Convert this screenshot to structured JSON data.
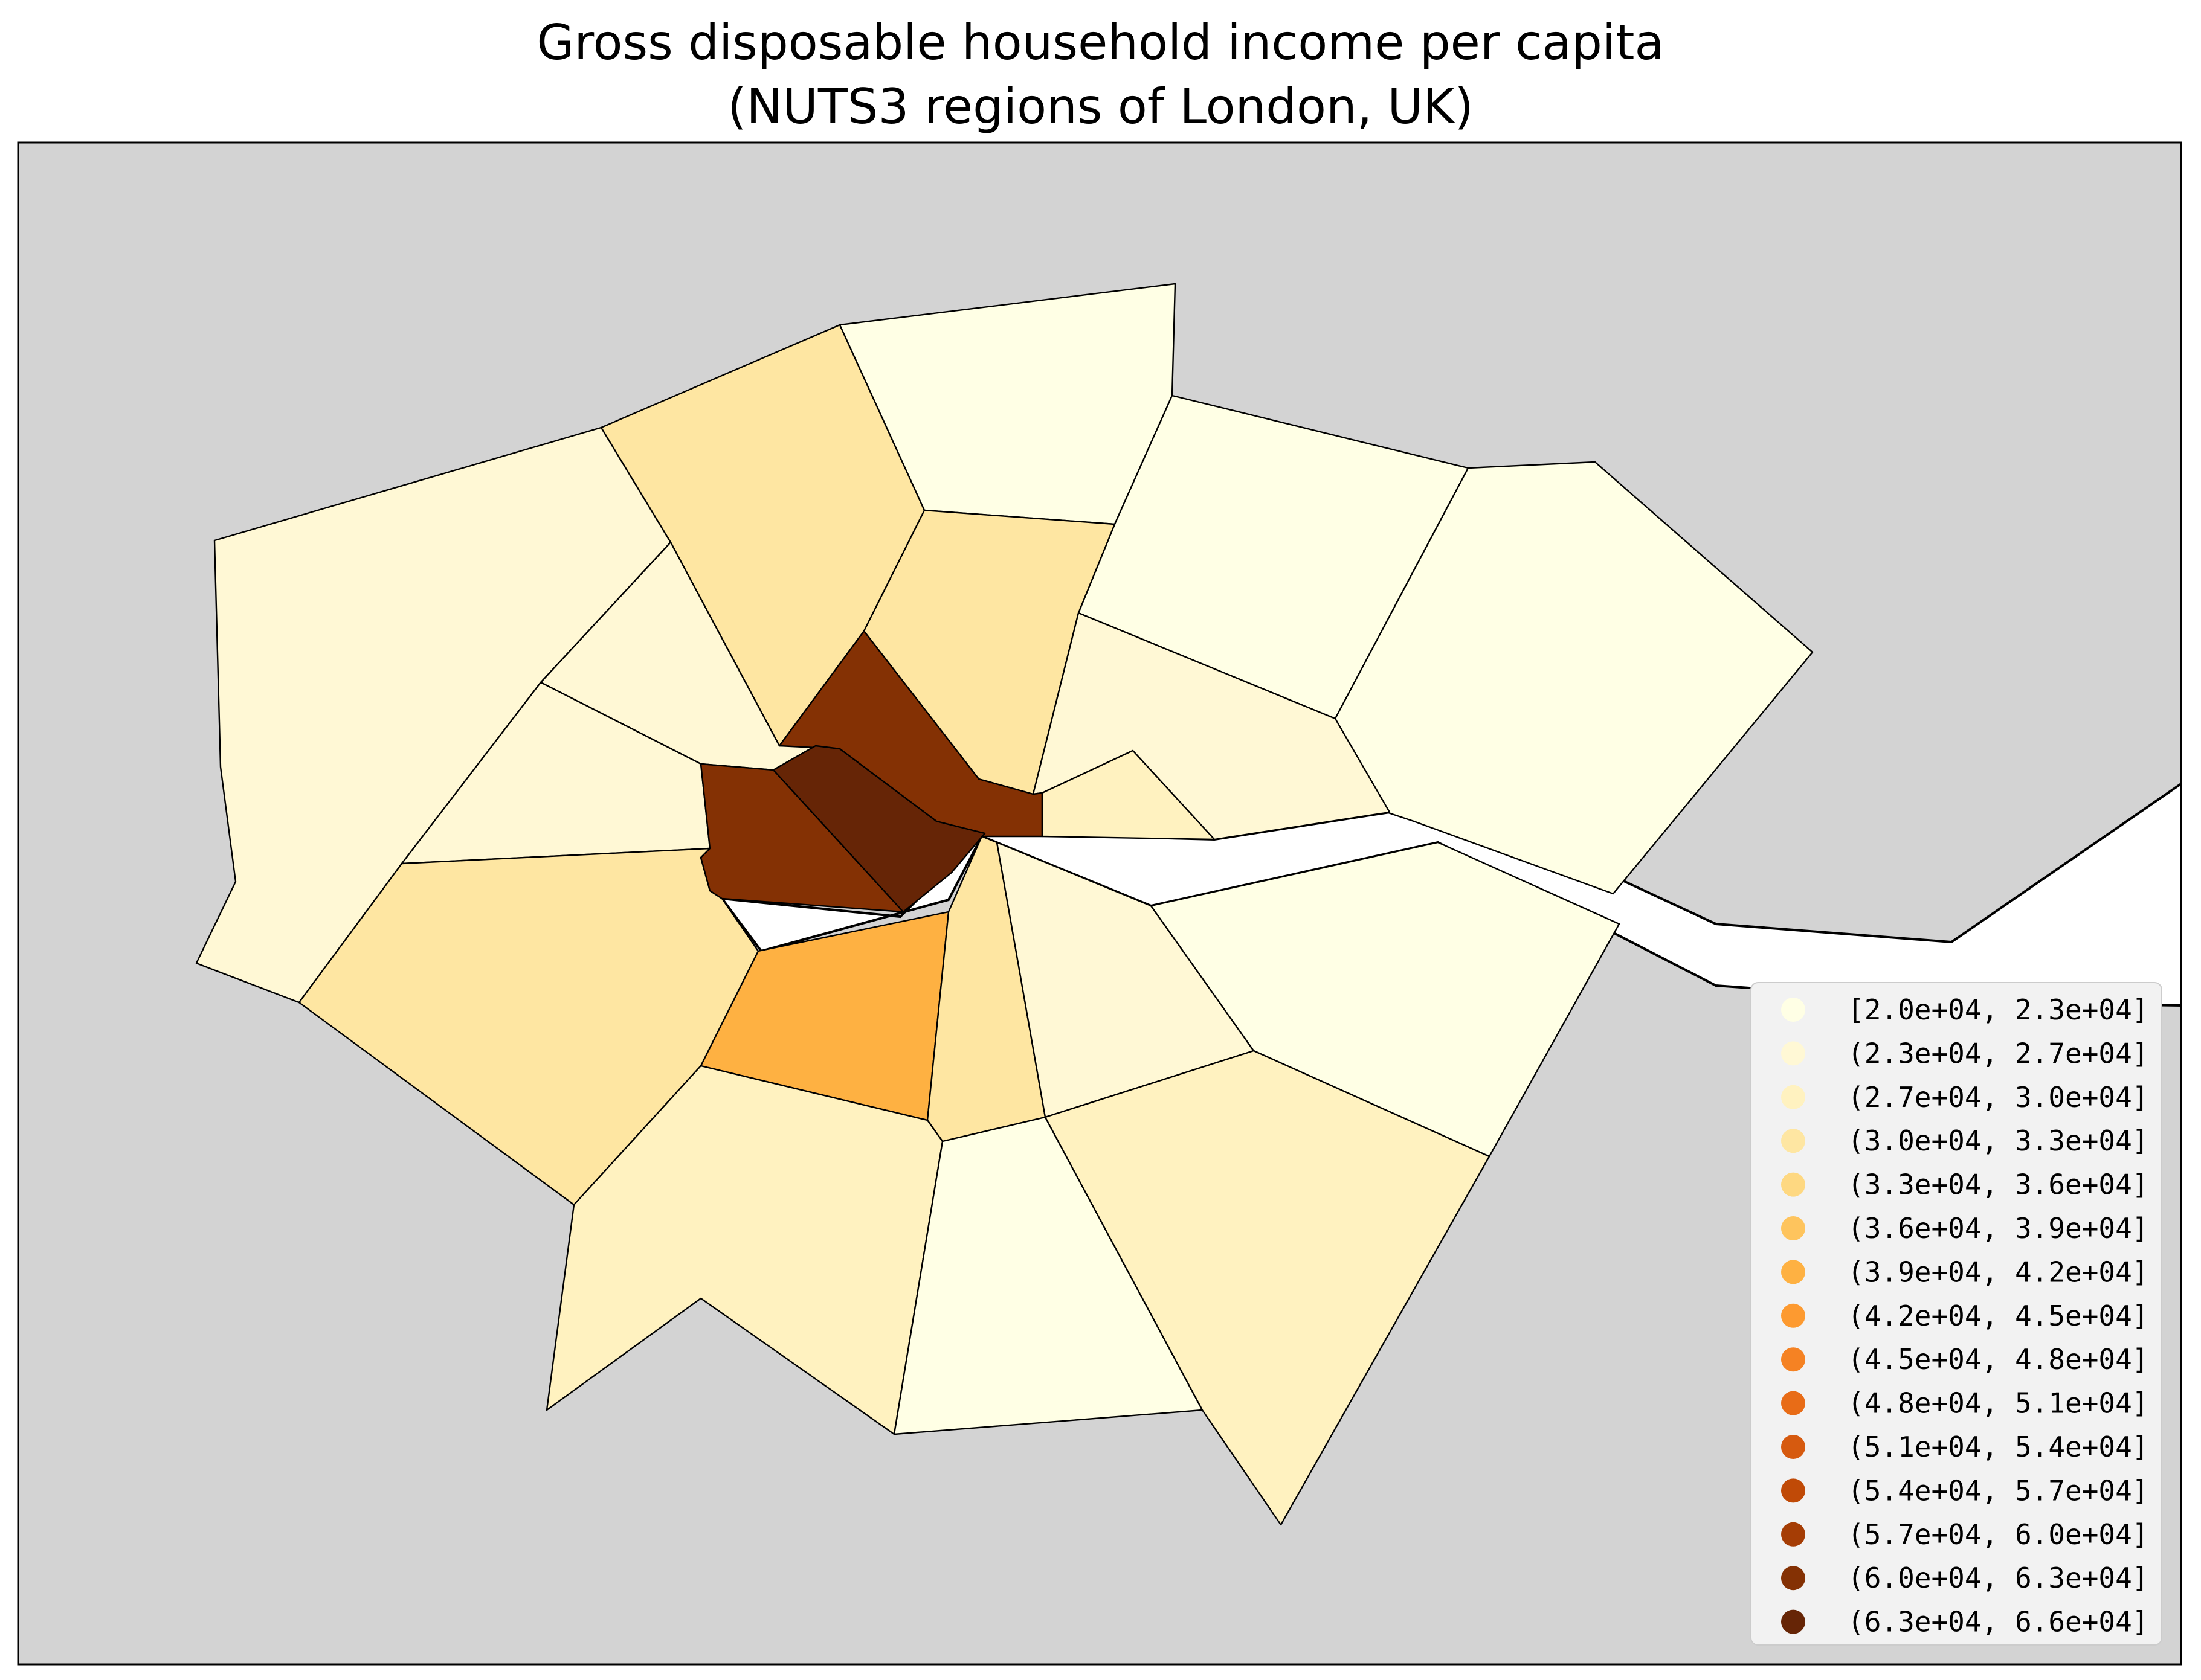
{
  "title": {
    "line1": "Gross disposable household income per capita",
    "line2": "(NUTS3 regions of London, UK)"
  },
  "colors": {
    "background": "#d3d3d3",
    "water": "#ffffff",
    "borders": "#000000",
    "legend_bg": "#f2f2f2"
  },
  "legend": {
    "location": "lower-right",
    "items": [
      {
        "label": "[2.0e+04, 2.3e+04]",
        "color": "#ffffe5"
      },
      {
        "label": "(2.3e+04, 2.7e+04]",
        "color": "#fff8d5"
      },
      {
        "label": "(2.7e+04, 3.0e+04]",
        "color": "#fff2c0"
      },
      {
        "label": "(3.0e+04, 3.3e+04]",
        "color": "#fee6a2"
      },
      {
        "label": "(3.3e+04, 3.6e+04]",
        "color": "#fed881"
      },
      {
        "label": "(3.6e+04, 3.9e+04]",
        "color": "#fec45d"
      },
      {
        "label": "(3.9e+04, 4.2e+04]",
        "color": "#feb142"
      },
      {
        "label": "(4.2e+04, 4.5e+04]",
        "color": "#fd9a30"
      },
      {
        "label": "(4.5e+04, 4.8e+04]",
        "color": "#f58223"
      },
      {
        "label": "(4.8e+04, 5.1e+04]",
        "color": "#e86c17"
      },
      {
        "label": "(5.1e+04, 5.4e+04]",
        "color": "#d65a0f"
      },
      {
        "label": "(5.4e+04, 5.7e+04]",
        "color": "#c04a07"
      },
      {
        "label": "(5.7e+04, 6.0e+04]",
        "color": "#a53d05"
      },
      {
        "label": "(6.0e+04, 6.3e+04]",
        "color": "#843104"
      },
      {
        "label": "(6.3e+04, 6.6e+04]",
        "color": "#662506"
      }
    ]
  },
  "regions": [
    {
      "id": "northwest-outer",
      "class_index": 1
    },
    {
      "id": "north-central-west",
      "class_index": 3
    },
    {
      "id": "north",
      "class_index": 0
    },
    {
      "id": "northeast-1",
      "class_index": 0
    },
    {
      "id": "northeast-outer",
      "class_index": 0
    },
    {
      "id": "inner-north-west",
      "class_index": 1
    },
    {
      "id": "inner-north",
      "class_index": 3
    },
    {
      "id": "inner-north-east",
      "class_index": 1
    },
    {
      "id": "west-inner",
      "class_index": 1
    },
    {
      "id": "west-outer",
      "class_index": 3
    },
    {
      "id": "central-north",
      "class_index": 13
    },
    {
      "id": "central-west",
      "class_index": 13
    },
    {
      "id": "central-core",
      "class_index": 14
    },
    {
      "id": "east-riverside",
      "class_index": 2
    },
    {
      "id": "southwest-inner",
      "class_index": 6
    },
    {
      "id": "south-central",
      "class_index": 3
    },
    {
      "id": "southeast-inner",
      "class_index": 1
    },
    {
      "id": "east-south-outer",
      "class_index": 0
    },
    {
      "id": "southwest-outer",
      "class_index": 2
    },
    {
      "id": "south-outer",
      "class_index": 0
    },
    {
      "id": "southeast-outer",
      "class_index": 2
    }
  ]
}
